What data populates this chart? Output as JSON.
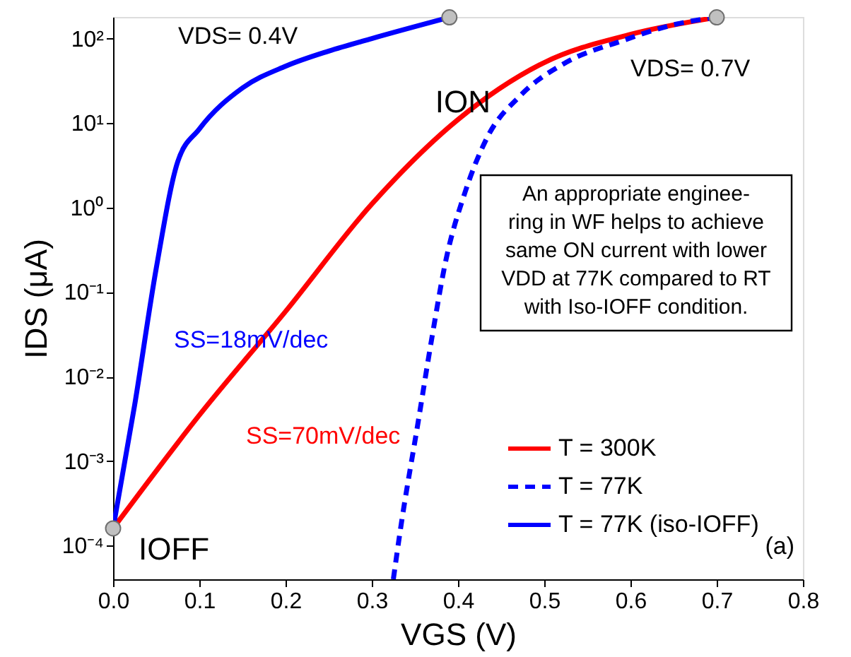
{
  "chart_data": {
    "type": "line",
    "xlabel": "VGS (V)",
    "ylabel": "IDS (μA)",
    "log": "y",
    "xlim": [
      0,
      0.8
    ],
    "xticks": [
      {
        "value": 0,
        "label": "0.0"
      },
      0.1,
      0.2,
      0.3,
      0.4,
      0.5,
      0.6,
      0.7,
      0.8
    ],
    "ylim": [
      4e-05,
      180
    ],
    "yticks": [
      {
        "value": 0.0001,
        "label": "10⁻⁴"
      },
      {
        "value": 0.001,
        "label": "10⁻³"
      },
      {
        "value": 0.01,
        "label": "10⁻²"
      },
      {
        "value": 0.1,
        "label": "10⁻¹"
      },
      {
        "value": 1,
        "label": "10⁰"
      },
      {
        "value": 10,
        "label": "10¹"
      },
      {
        "value": 100,
        "label": "10²"
      }
    ],
    "grid": false,
    "legend": "bottom right",
    "series": [
      {
        "name": "T = 300K",
        "color": "#ff0000",
        "line_style": "solid",
        "x": [
          0,
          0.1,
          0.2,
          0.3,
          0.4,
          0.5,
          0.6,
          0.7
        ],
        "values": [
          0.00016,
          0.0035,
          0.059,
          1.1,
          11,
          52,
          112,
          178
        ]
      },
      {
        "name": "T = 77K",
        "color": "#0000ff",
        "line_style": "dashed",
        "x": [
          0.325,
          0.333,
          0.354,
          0.37,
          0.386,
          0.408,
          0.434,
          0.472,
          0.525,
          0.589,
          0.653,
          0.7
        ],
        "values": [
          4e-05,
          0.00015,
          0.003,
          0.03,
          0.24,
          1.5,
          6.8,
          21,
          52,
          93,
          148,
          178
        ]
      },
      {
        "name": "T = 77K (iso-IOFF)",
        "color": "#0000ff",
        "line_style": "solid",
        "x": [
          0,
          0.025,
          0.05,
          0.075,
          0.1,
          0.15,
          0.2,
          0.25,
          0.3,
          0.39
        ],
        "values": [
          0.00016,
          0.0046,
          0.19,
          3.5,
          8.5,
          26,
          47,
          71,
          100,
          178
        ]
      },
      {
        "type": "scatter",
        "marker": "circle",
        "color": "#c0c0c0",
        "x": [
          0,
          0.39,
          0.7
        ],
        "values": [
          0.00016,
          178,
          178
        ]
      }
    ],
    "annotations": [
      "VDS= 0.4V",
      {
        "text": "ION",
        "x": 0.39,
        "y": 178
      },
      "VDS= 0.7V",
      "An appropriate enginee-\nring in WF helps to achieve\nsame ON current with lower\nVDD at 77K compared to RT\nwith Iso-IOFF condition.",
      "SS=18mV/dec",
      "SS=70mV/dec",
      {
        "text": "IOFF",
        "x": 0,
        "y": 0.00016
      },
      "(a)"
    ]
  }
}
